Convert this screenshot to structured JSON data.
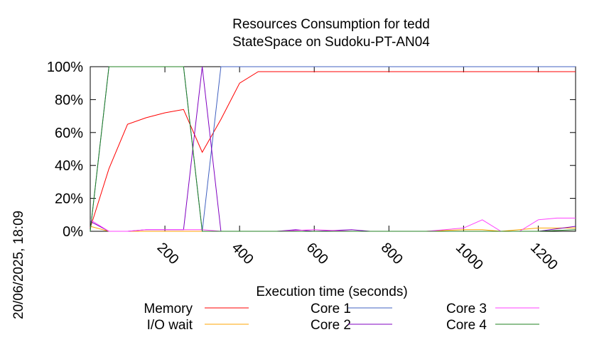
{
  "chart_data": {
    "type": "line",
    "title": "Resources Consumption for tedd",
    "subtitle": "StateSpace on Sudoku-PT-AN04",
    "xlabel": "Execution time (seconds)",
    "ylabel": "",
    "xlim": [
      0,
      1300
    ],
    "ylim": [
      0,
      100
    ],
    "x_ticks": [
      "200",
      "400",
      "600",
      "800",
      "1000",
      "1200"
    ],
    "x_tick_values": [
      200,
      400,
      600,
      800,
      1000,
      1200
    ],
    "y_ticks": [
      "0%",
      "20%",
      "40%",
      "60%",
      "80%",
      "100%"
    ],
    "y_tick_values": [
      0,
      20,
      40,
      60,
      80,
      100
    ],
    "grid": false,
    "legend_position": "bottom",
    "side_label": "20/06/2025, 18:09",
    "series": [
      {
        "name": "Memory",
        "color": "#ff0000",
        "points": [
          [
            0,
            2
          ],
          [
            50,
            38
          ],
          [
            100,
            65
          ],
          [
            150,
            69
          ],
          [
            200,
            72
          ],
          [
            250,
            74
          ],
          [
            300,
            48
          ],
          [
            350,
            68
          ],
          [
            400,
            90
          ],
          [
            450,
            97
          ],
          [
            500,
            97
          ],
          [
            600,
            97
          ],
          [
            700,
            97
          ],
          [
            800,
            97
          ],
          [
            900,
            97
          ],
          [
            1000,
            97
          ],
          [
            1100,
            97
          ],
          [
            1200,
            97
          ],
          [
            1300,
            97
          ]
        ]
      },
      {
        "name": "I/O wait",
        "color": "#ffa500",
        "points": [
          [
            0,
            3
          ],
          [
            50,
            0
          ],
          [
            100,
            0
          ],
          [
            200,
            0
          ],
          [
            300,
            0
          ],
          [
            400,
            0
          ],
          [
            500,
            0
          ],
          [
            600,
            0
          ],
          [
            700,
            0
          ],
          [
            800,
            0
          ],
          [
            900,
            0
          ],
          [
            1000,
            1
          ],
          [
            1050,
            1
          ],
          [
            1100,
            0
          ],
          [
            1200,
            2
          ],
          [
            1250,
            2
          ],
          [
            1300,
            2
          ]
        ]
      },
      {
        "name": "Core 1",
        "color": "#4060c0",
        "points": [
          [
            0,
            0
          ],
          [
            50,
            100
          ],
          [
            100,
            100
          ],
          [
            150,
            100
          ],
          [
            200,
            100
          ],
          [
            250,
            100
          ],
          [
            300,
            0
          ],
          [
            350,
            100
          ],
          [
            400,
            100
          ],
          [
            500,
            100
          ],
          [
            600,
            100
          ],
          [
            700,
            100
          ],
          [
            800,
            100
          ],
          [
            900,
            100
          ],
          [
            1000,
            100
          ],
          [
            1100,
            100
          ],
          [
            1200,
            100
          ],
          [
            1300,
            100
          ]
        ]
      },
      {
        "name": "Core 2",
        "color": "#8000c0",
        "points": [
          [
            0,
            6
          ],
          [
            50,
            0
          ],
          [
            100,
            0
          ],
          [
            150,
            1
          ],
          [
            200,
            1
          ],
          [
            250,
            1
          ],
          [
            300,
            100
          ],
          [
            350,
            0
          ],
          [
            400,
            0
          ],
          [
            500,
            0
          ],
          [
            550,
            1
          ],
          [
            600,
            0
          ],
          [
            700,
            1
          ],
          [
            750,
            0
          ],
          [
            800,
            0
          ],
          [
            900,
            0
          ],
          [
            1000,
            0
          ],
          [
            1100,
            0
          ],
          [
            1200,
            0
          ],
          [
            1300,
            3
          ]
        ]
      },
      {
        "name": "Core 3",
        "color": "#ff40ff",
        "points": [
          [
            0,
            7
          ],
          [
            50,
            0
          ],
          [
            100,
            0
          ],
          [
            150,
            1
          ],
          [
            200,
            1
          ],
          [
            250,
            1
          ],
          [
            300,
            1
          ],
          [
            350,
            0
          ],
          [
            400,
            0
          ],
          [
            500,
            0
          ],
          [
            600,
            1
          ],
          [
            700,
            0
          ],
          [
            800,
            0
          ],
          [
            900,
            0
          ],
          [
            1000,
            2
          ],
          [
            1050,
            7
          ],
          [
            1100,
            0
          ],
          [
            1150,
            0
          ],
          [
            1200,
            7
          ],
          [
            1250,
            8
          ],
          [
            1300,
            8
          ]
        ]
      },
      {
        "name": "Core 4",
        "color": "#208020",
        "points": [
          [
            0,
            0
          ],
          [
            50,
            100
          ],
          [
            100,
            100
          ],
          [
            150,
            100
          ],
          [
            200,
            100
          ],
          [
            250,
            100
          ],
          [
            300,
            0
          ],
          [
            350,
            0
          ],
          [
            400,
            0
          ],
          [
            500,
            0
          ],
          [
            600,
            0
          ],
          [
            700,
            0
          ],
          [
            800,
            0
          ],
          [
            900,
            0
          ],
          [
            1000,
            0
          ],
          [
            1100,
            0
          ],
          [
            1200,
            0
          ],
          [
            1300,
            1
          ]
        ]
      }
    ]
  }
}
